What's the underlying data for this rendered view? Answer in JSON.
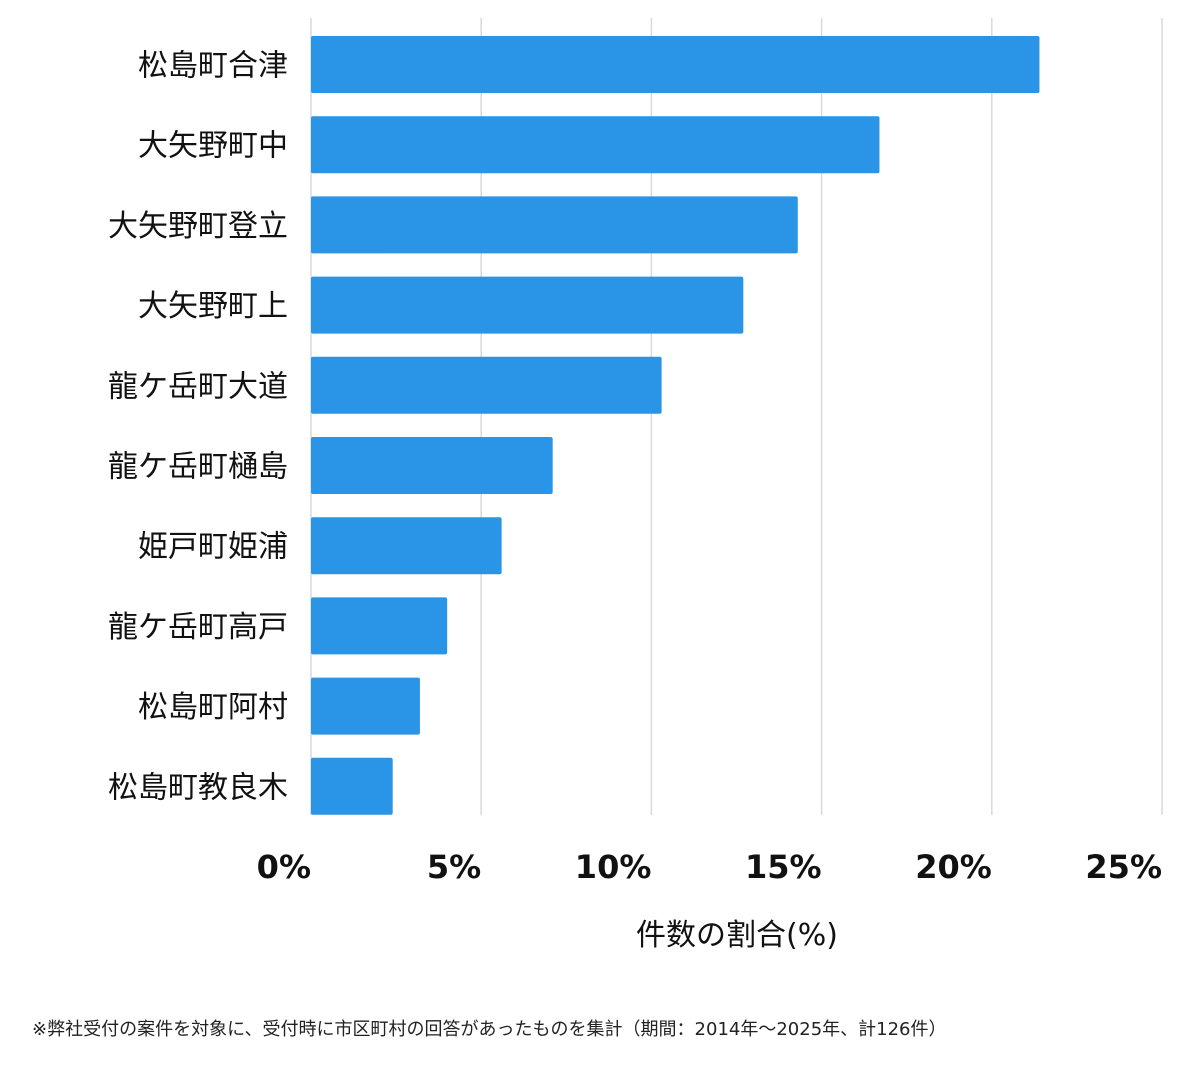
{
  "chart_data": {
    "type": "bar",
    "orientation": "horizontal",
    "categories": [
      "松島町合津",
      "大矢野町中",
      "大矢野町登立",
      "大矢野町上",
      "龍ケ岳町大道",
      "龍ケ岳町樋島",
      "姫戸町姫浦",
      "龍ケ岳町高戸",
      "松島町阿村",
      "松島町教良木"
    ],
    "values": [
      21.4,
      16.7,
      14.3,
      12.7,
      10.3,
      7.1,
      5.6,
      4.0,
      3.2,
      2.4
    ],
    "xlabel": "件数の割合(%)",
    "xlim": [
      0,
      25
    ],
    "xticks": [
      0,
      5,
      10,
      15,
      20,
      25
    ],
    "xtick_labels": [
      "0%",
      "5%",
      "10%",
      "15%",
      "20%",
      "25%"
    ],
    "grid": true,
    "bar_color": "#2a94e6"
  },
  "footnote": "※弊社受付の案件を対象に、受付時に市区町村の回答があったものを集計（期間：2014年～2025年、計126件）"
}
